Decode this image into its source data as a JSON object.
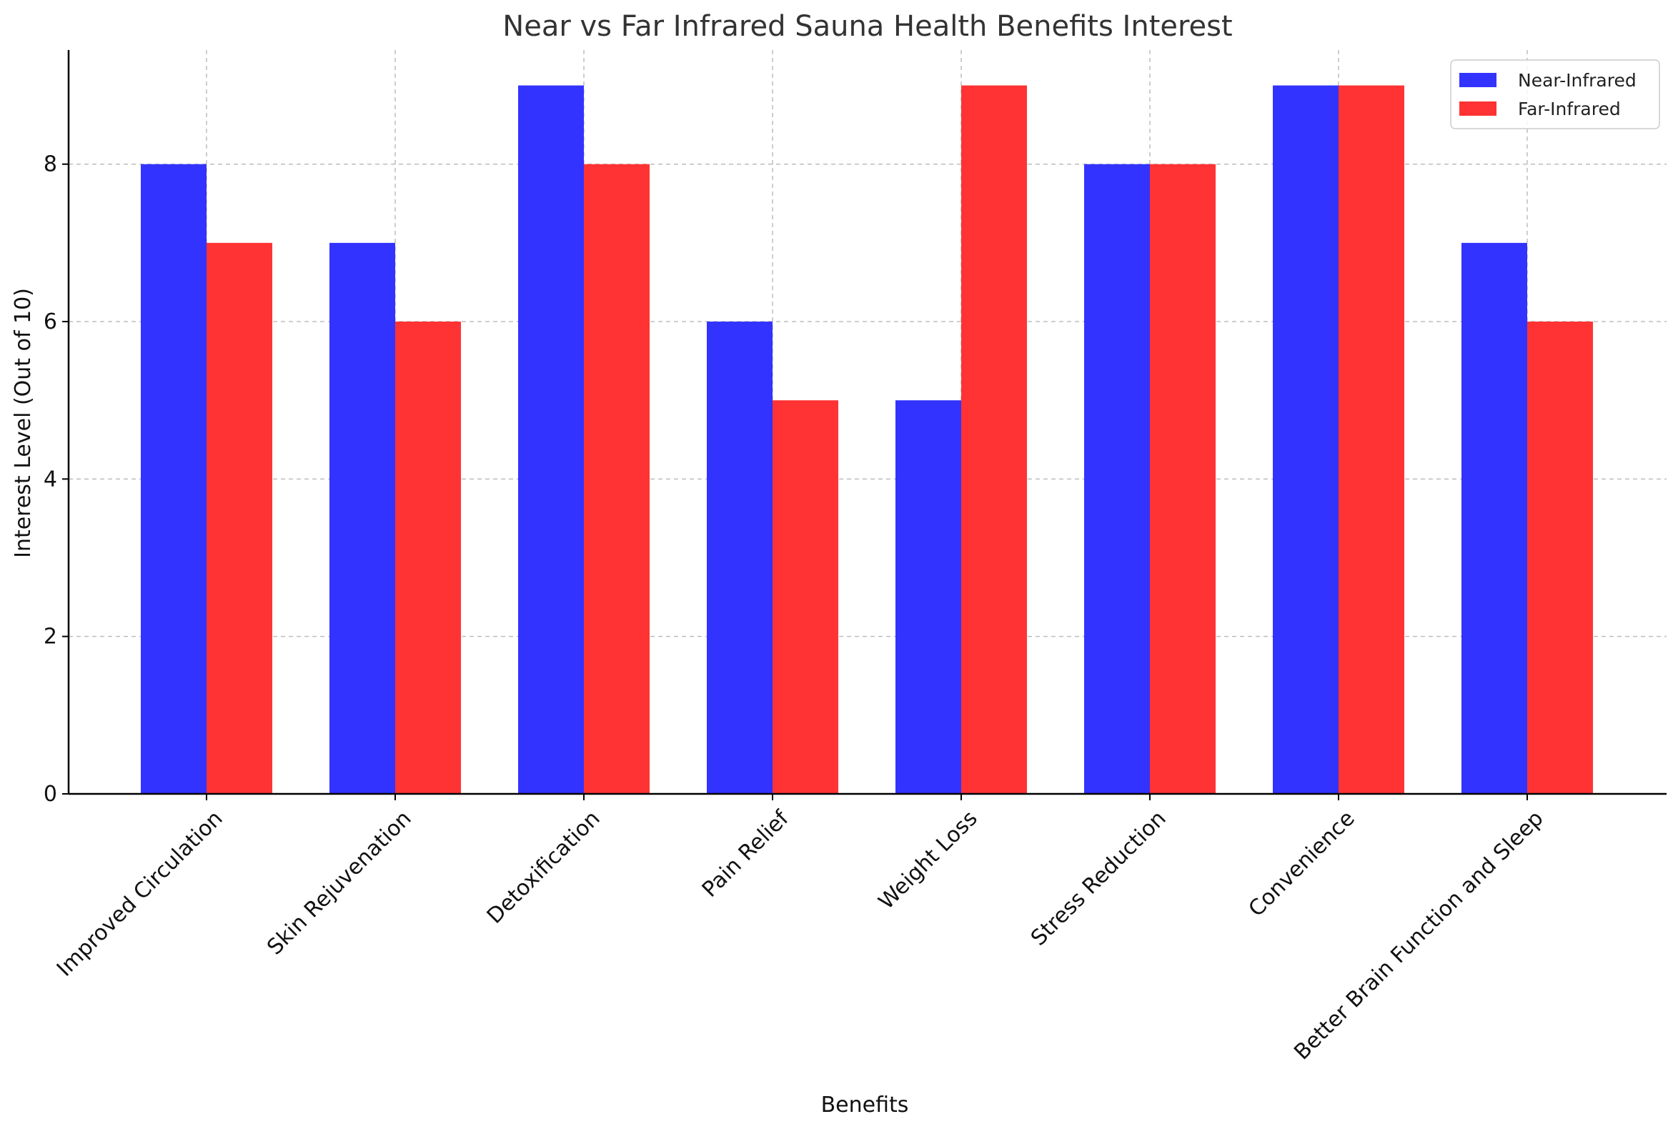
{
  "chart_data": {
    "type": "bar",
    "title": "Near vs Far Infrared Sauna Health Benefits Interest",
    "xlabel": "Benefits",
    "ylabel": "Interest Level (Out of 10)",
    "categories": [
      "Improved Circulation",
      "Skin Rejuvenation",
      "Detoxification",
      "Pain Relief",
      "Weight Loss",
      "Stress Reduction",
      "Convenience",
      "Better Brain Function and Sleep"
    ],
    "series": [
      {
        "name": "Near-Infrared",
        "color": "#3333ff",
        "values": [
          8,
          7,
          9,
          6,
          5,
          8,
          9,
          7
        ]
      },
      {
        "name": "Far-Infrared",
        "color": "#ff3333",
        "values": [
          7,
          6,
          8,
          5,
          9,
          8,
          9,
          6
        ]
      }
    ],
    "ylim": [
      0,
      9.45
    ],
    "yticks": [
      0,
      2,
      4,
      6,
      8
    ],
    "grid": true,
    "legend_position": "top-right"
  }
}
